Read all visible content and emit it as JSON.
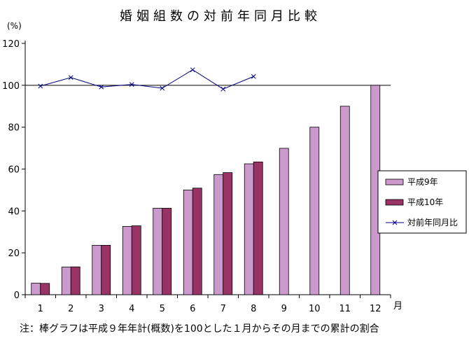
{
  "chart_data": {
    "type": "bar",
    "title": "婚姻組数の対前年同月比較",
    "y_unit": "(%)",
    "x_unit": "月",
    "categories": [
      "1",
      "2",
      "3",
      "4",
      "5",
      "6",
      "7",
      "8",
      "9",
      "10",
      "11",
      "12"
    ],
    "ylim": [
      0,
      120
    ],
    "yticks": [
      "0",
      "20",
      "40",
      "60",
      "80",
      "100",
      "120"
    ],
    "reference_line": 100,
    "series": [
      {
        "name": "平成9年",
        "kind": "bar",
        "color": "#cc99cc",
        "values": [
          5.5,
          13.2,
          23.6,
          32.6,
          41.3,
          50.0,
          57.4,
          62.5,
          69.9,
          80.0,
          90.0,
          100.0
        ]
      },
      {
        "name": "平成10年",
        "kind": "bar",
        "color": "#993366",
        "values": [
          5.4,
          13.3,
          23.6,
          32.9,
          41.3,
          50.9,
          58.3,
          63.4,
          null,
          null,
          null,
          null
        ]
      },
      {
        "name": "対前年同月比",
        "kind": "line",
        "color": "#000080",
        "marker": "x",
        "values": [
          99.6,
          103.7,
          99.2,
          100.4,
          98.6,
          107.4,
          98.2,
          104.2,
          null,
          null,
          null,
          null
        ]
      }
    ],
    "legend_position": "right",
    "grid": false
  },
  "note": "注：棒グラフは平成９年年計(概数)を100とした１月からその月までの累計の割合"
}
